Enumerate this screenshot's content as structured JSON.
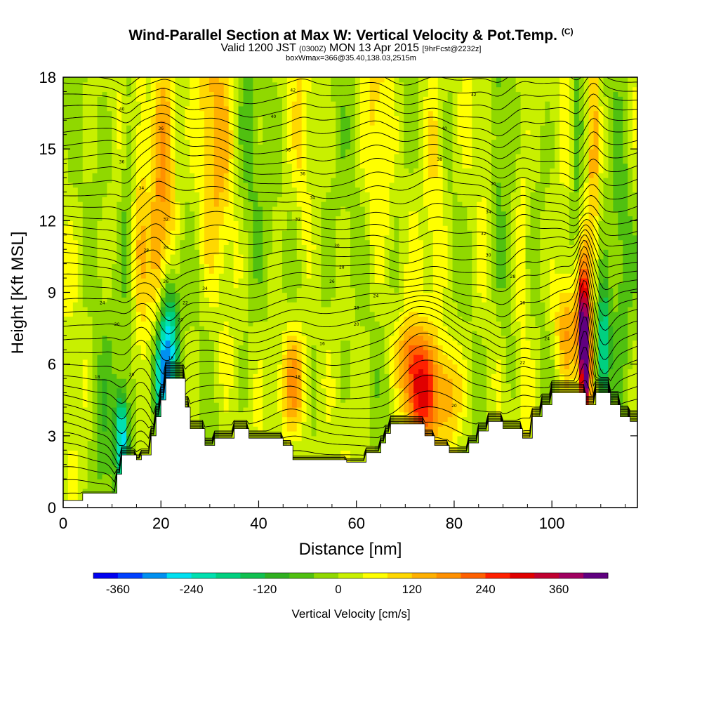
{
  "header": {
    "title": "Wind-Parallel Section at Max W: Vertical Velocity & Pot.Temp.",
    "title_mark": "(C)",
    "subtitle_a": "Valid 1200 JST",
    "subtitle_b": "(0300Z)",
    "subtitle_c": "MON 13 Apr 2015",
    "subtitle_d": "[9hrFcst@2232z]",
    "subtitle_line2": "boxWmax=366@35.40,138.03,2515m"
  },
  "chart_data": {
    "type": "heatmap",
    "title": "Wind-Parallel Section at Max W: Vertical Velocity & Pot.Temp.",
    "xlabel": "Distance [nm]",
    "ylabel": "Height [Kft MSL]",
    "xlim": [
      0,
      117.5
    ],
    "ylim": [
      0,
      18
    ],
    "x_ticks": [
      0,
      20,
      40,
      60,
      80,
      100
    ],
    "y_ticks": [
      0,
      3,
      6,
      9,
      12,
      15,
      18
    ],
    "colorbar": {
      "label": "Vertical Velocity [cm/s]",
      "min": -400,
      "max": 440,
      "ticks": [
        -360,
        -240,
        -120,
        0,
        120,
        240,
        360
      ],
      "colors": [
        "#0000f0",
        "#0040ff",
        "#0090f0",
        "#00e0f0",
        "#00e0b0",
        "#00d080",
        "#10c050",
        "#30b020",
        "#50c010",
        "#90d800",
        "#c8f000",
        "#ffff00",
        "#ffd800",
        "#ffb000",
        "#ff9000",
        "#ff6000",
        "#ff2000",
        "#e00000",
        "#c00030",
        "#a00060",
        "#600080"
      ]
    },
    "terrain_height_kft": [
      [
        0,
        0.3
      ],
      [
        4,
        0.3
      ],
      [
        4,
        0.6
      ],
      [
        11,
        0.6
      ],
      [
        11,
        1.4
      ],
      [
        12,
        1.4
      ],
      [
        12,
        2.2
      ],
      [
        15,
        2.2
      ],
      [
        15,
        2.0
      ],
      [
        16,
        2.0
      ],
      [
        16,
        2.2
      ],
      [
        18,
        2.2
      ],
      [
        18,
        3.0
      ],
      [
        19,
        3.0
      ],
      [
        19,
        3.8
      ],
      [
        20,
        3.8
      ],
      [
        20,
        4.5
      ],
      [
        21,
        4.5
      ],
      [
        21,
        5.4
      ],
      [
        25,
        5.4
      ],
      [
        25,
        4.2
      ],
      [
        26,
        4.2
      ],
      [
        26,
        3.3
      ],
      [
        29,
        3.3
      ],
      [
        29,
        2.6
      ],
      [
        31,
        2.6
      ],
      [
        31,
        2.9
      ],
      [
        35,
        2.9
      ],
      [
        35,
        3.3
      ],
      [
        38,
        3.3
      ],
      [
        38,
        2.9
      ],
      [
        45,
        2.9
      ],
      [
        45,
        2.6
      ],
      [
        47,
        2.6
      ],
      [
        47,
        2.0
      ],
      [
        58,
        2.0
      ],
      [
        58,
        1.9
      ],
      [
        62,
        1.9
      ],
      [
        62,
        2.3
      ],
      [
        65,
        2.3
      ],
      [
        65,
        2.7
      ],
      [
        66,
        2.7
      ],
      [
        66,
        3.1
      ],
      [
        67,
        3.1
      ],
      [
        67,
        3.5
      ],
      [
        74,
        3.5
      ],
      [
        74,
        3.0
      ],
      [
        76,
        3.0
      ],
      [
        76,
        2.6
      ],
      [
        79,
        2.6
      ],
      [
        79,
        2.3
      ],
      [
        83,
        2.3
      ],
      [
        83,
        2.7
      ],
      [
        85,
        2.7
      ],
      [
        85,
        3.2
      ],
      [
        87,
        3.2
      ],
      [
        87,
        3.6
      ],
      [
        90,
        3.6
      ],
      [
        90,
        3.3
      ],
      [
        94,
        3.3
      ],
      [
        94,
        2.9
      ],
      [
        96,
        2.9
      ],
      [
        96,
        3.8
      ],
      [
        98,
        3.8
      ],
      [
        98,
        4.3
      ],
      [
        100,
        4.3
      ],
      [
        100,
        4.8
      ],
      [
        107,
        4.8
      ],
      [
        107,
        4.3
      ],
      [
        109,
        4.3
      ],
      [
        109,
        4.8
      ],
      [
        112,
        4.8
      ],
      [
        112,
        4.3
      ],
      [
        114,
        4.3
      ],
      [
        114,
        3.8
      ],
      [
        116,
        3.8
      ],
      [
        116,
        3.6
      ],
      [
        117.5,
        3.6
      ]
    ],
    "w_features_cm_s": [
      {
        "x": 8,
        "z": 2.0,
        "sx": 2.0,
        "sz": 3.0,
        "w": -80
      },
      {
        "x": 12,
        "z": 3.0,
        "sx": 0.9,
        "sz": 1.4,
        "w": -260
      },
      {
        "x": 20,
        "z": 5.5,
        "sx": 1.2,
        "sz": 1.8,
        "w": -320
      },
      {
        "x": 22,
        "z": 7.0,
        "sx": 1.2,
        "sz": 2.0,
        "w": -230
      },
      {
        "x": 21,
        "z": 15.0,
        "sx": 1.6,
        "sz": 3.5,
        "w": 170
      },
      {
        "x": 19,
        "z": 10.5,
        "sx": 1.0,
        "sz": 2.2,
        "w": 120
      },
      {
        "x": 13,
        "z": 14.0,
        "sx": 0.9,
        "sz": 5.0,
        "w": -70
      },
      {
        "x": 16,
        "z": 12.0,
        "sx": 1.0,
        "sz": 6.0,
        "w": 60
      },
      {
        "x": 31,
        "z": 15.5,
        "sx": 2.5,
        "sz": 4.0,
        "w": 110
      },
      {
        "x": 38,
        "z": 13.0,
        "sx": 2.0,
        "sz": 6.0,
        "w": -50
      },
      {
        "x": 47,
        "z": 5.2,
        "sx": 2.2,
        "sz": 1.6,
        "w": 170
      },
      {
        "x": 49,
        "z": 16.0,
        "sx": 1.2,
        "sz": 3.0,
        "w": 60
      },
      {
        "x": 53,
        "z": 10.0,
        "sx": 3.0,
        "sz": 5.0,
        "w": -35
      },
      {
        "x": 64,
        "z": 15.5,
        "sx": 1.8,
        "sz": 3.5,
        "w": 80
      },
      {
        "x": 69,
        "z": 15.5,
        "sx": 1.5,
        "sz": 4.0,
        "w": -40
      },
      {
        "x": 73,
        "z": 4.7,
        "sx": 2.2,
        "sz": 1.4,
        "w": 260
      },
      {
        "x": 71,
        "z": 6.5,
        "sx": 2.0,
        "sz": 1.0,
        "w": 130
      },
      {
        "x": 79,
        "z": 4.8,
        "sx": 1.8,
        "sz": 1.6,
        "w": 150
      },
      {
        "x": 76,
        "z": 14.0,
        "sx": 1.5,
        "sz": 5.0,
        "w": 80
      },
      {
        "x": 89,
        "z": 14.5,
        "sx": 1.0,
        "sz": 5.0,
        "w": -80
      },
      {
        "x": 91,
        "z": 9.0,
        "sx": 1.0,
        "sz": 3.0,
        "w": -60
      },
      {
        "x": 94,
        "z": 13.0,
        "sx": 1.0,
        "sz": 6.0,
        "w": 50
      },
      {
        "x": 103,
        "z": 7.5,
        "sx": 2.0,
        "sz": 1.6,
        "w": 140
      },
      {
        "x": 106.5,
        "z": 7.5,
        "sx": 0.8,
        "sz": 1.8,
        "w": 400
      },
      {
        "x": 107,
        "z": 5.5,
        "sx": 0.7,
        "sz": 1.2,
        "w": 300
      },
      {
        "x": 108.5,
        "z": 15.5,
        "sx": 0.8,
        "sz": 4.0,
        "w": 130
      },
      {
        "x": 110.5,
        "z": 6.5,
        "sx": 1.0,
        "sz": 2.0,
        "w": -270
      },
      {
        "x": 105,
        "z": 15.0,
        "sx": 0.8,
        "sz": 4.0,
        "w": -90
      },
      {
        "x": 114,
        "z": 10.0,
        "sx": 1.5,
        "sz": 5.0,
        "w": -60
      }
    ],
    "isentropes": {
      "variable": "Potential Temperature",
      "count": 38,
      "z_bottom_kft": 0.6,
      "spacing_kft": 0.47
    },
    "contour_labels": [
      {
        "x": 8,
        "z": 8.5,
        "text": "24"
      },
      {
        "x": 11,
        "z": 7.6,
        "text": "20"
      },
      {
        "x": 7,
        "z": 5.4,
        "text": "18"
      },
      {
        "x": 14,
        "z": 5.5,
        "text": "20"
      },
      {
        "x": 12,
        "z": 16.6,
        "text": "40"
      },
      {
        "x": 12,
        "z": 14.4,
        "text": "36"
      },
      {
        "x": 16,
        "z": 13.3,
        "text": "34"
      },
      {
        "x": 17,
        "z": 10.7,
        "text": "28"
      },
      {
        "x": 20,
        "z": 15.8,
        "text": "36"
      },
      {
        "x": 21,
        "z": 12.0,
        "text": "32"
      },
      {
        "x": 21,
        "z": 10.8,
        "text": "30"
      },
      {
        "x": 21,
        "z": 9.4,
        "text": "26"
      },
      {
        "x": 25,
        "z": 8.5,
        "text": "22"
      },
      {
        "x": 29,
        "z": 9.1,
        "text": "34"
      },
      {
        "x": 24,
        "z": 7.8,
        "text": "20"
      },
      {
        "x": 22,
        "z": 6.2,
        "text": "18"
      },
      {
        "x": 47,
        "z": 17.4,
        "text": "42"
      },
      {
        "x": 43,
        "z": 16.3,
        "text": "40"
      },
      {
        "x": 46,
        "z": 14.9,
        "text": "38"
      },
      {
        "x": 49,
        "z": 13.9,
        "text": "36"
      },
      {
        "x": 51,
        "z": 12.9,
        "text": "34"
      },
      {
        "x": 48,
        "z": 12.0,
        "text": "32"
      },
      {
        "x": 56,
        "z": 10.9,
        "text": "30"
      },
      {
        "x": 57,
        "z": 10.0,
        "text": "28"
      },
      {
        "x": 55,
        "z": 9.4,
        "text": "26"
      },
      {
        "x": 60,
        "z": 8.3,
        "text": "28"
      },
      {
        "x": 64,
        "z": 8.8,
        "text": "24"
      },
      {
        "x": 60,
        "z": 7.6,
        "text": "20"
      },
      {
        "x": 53,
        "z": 6.8,
        "text": "16"
      },
      {
        "x": 48,
        "z": 5.4,
        "text": "18"
      },
      {
        "x": 80,
        "z": 4.2,
        "text": "20"
      },
      {
        "x": 84,
        "z": 17.2,
        "text": "42"
      },
      {
        "x": 78,
        "z": 15.8,
        "text": "40"
      },
      {
        "x": 77,
        "z": 14.5,
        "text": "38"
      },
      {
        "x": 88,
        "z": 13.5,
        "text": "36"
      },
      {
        "x": 87,
        "z": 12.3,
        "text": "34"
      },
      {
        "x": 86,
        "z": 11.4,
        "text": "32"
      },
      {
        "x": 87,
        "z": 10.5,
        "text": "30"
      },
      {
        "x": 92,
        "z": 9.6,
        "text": "28"
      },
      {
        "x": 94,
        "z": 8.5,
        "text": "26"
      },
      {
        "x": 99,
        "z": 7.0,
        "text": "24"
      },
      {
        "x": 94,
        "z": 6.0,
        "text": "22"
      }
    ]
  }
}
